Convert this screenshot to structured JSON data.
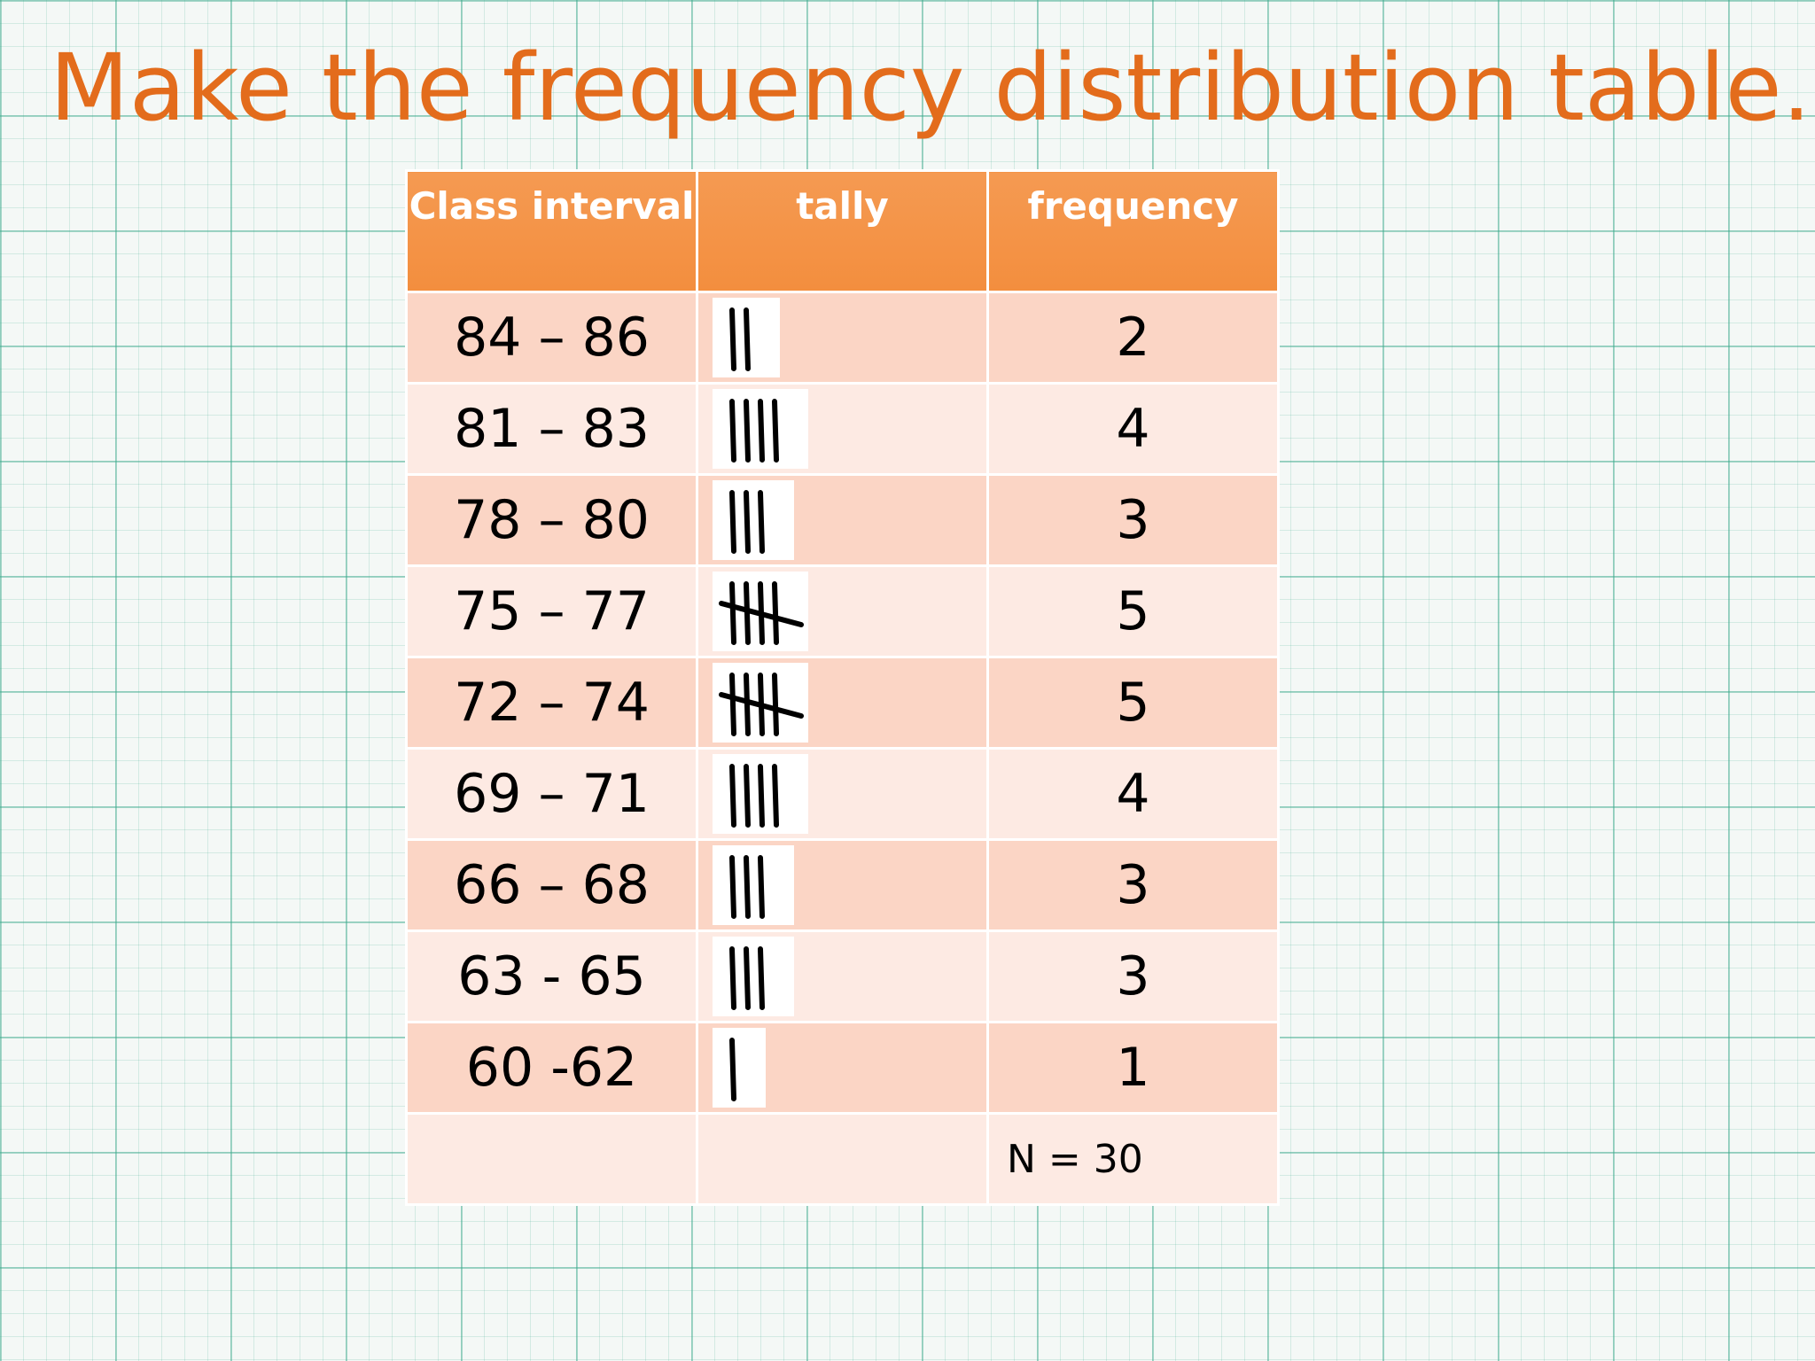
{
  "title": "Make the frequency distribution table.",
  "table": {
    "header": [
      "Class interval",
      "tally",
      "frequency"
    ],
    "rows": [
      [
        "84 – 86",
        2
      ],
      [
        "81 – 83",
        4
      ],
      [
        "78 – 80",
        3
      ],
      [
        "75 – 77",
        5
      ],
      [
        "72 – 74",
        5
      ],
      [
        "69 – 71",
        4
      ],
      [
        "66 – 68",
        3
      ],
      [
        "63 - 65",
        3
      ],
      [
        "60 -62",
        1
      ]
    ],
    "footer": "N = 30"
  }
}
